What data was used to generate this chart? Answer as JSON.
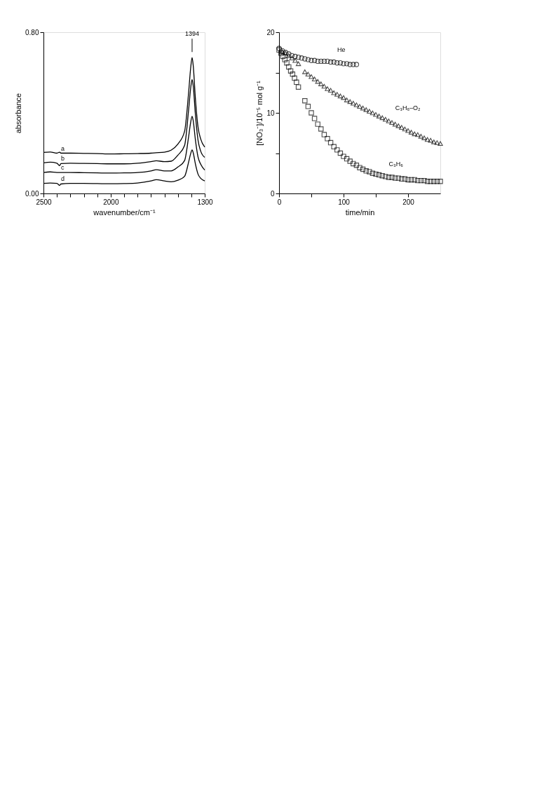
{
  "chart_data": [
    {
      "type": "line",
      "xlabel": "wavenumber/cm⁻¹",
      "ylabel": "absorbance",
      "xlim": [
        2500,
        1300
      ],
      "ylim": [
        0,
        0.8
      ],
      "xticks": [
        2500,
        {
          "value": 2400,
          "label": null
        },
        {
          "value": 2300,
          "label": null
        },
        {
          "value": 2200,
          "label": null
        },
        {
          "value": 2100,
          "label": null
        },
        2000,
        {
          "value": 1900,
          "label": null
        },
        {
          "value": 1800,
          "label": null
        },
        {
          "value": 1700,
          "label": null
        },
        {
          "value": 1600,
          "label": null
        },
        {
          "value": 1500,
          "label": null
        },
        {
          "value": 1400,
          "label": null
        },
        1300
      ],
      "yticks": [
        {
          "value": 0,
          "label": "0.00"
        },
        {
          "value": 0.8,
          "label": "0.80"
        }
      ],
      "marker": "none",
      "line_style": "solid",
      "grid": false,
      "x": [
        2500,
        2450,
        2400,
        2380,
        2370,
        2300,
        2200,
        2100,
        2000,
        1900,
        1800,
        1700,
        1660,
        1600,
        1550,
        1500,
        1450,
        1420,
        1405,
        1394,
        1385,
        1370,
        1350,
        1330,
        1300
      ],
      "series": [
        {
          "name": "a",
          "color": "#000000",
          "values": [
            0.204,
            0.206,
            0.2,
            0.205,
            0.2,
            0.2,
            0.199,
            0.198,
            0.196,
            0.197,
            0.198,
            0.2,
            0.202,
            0.205,
            0.215,
            0.245,
            0.308,
            0.5,
            0.62,
            0.674,
            0.63,
            0.476,
            0.33,
            0.27,
            0.23
          ]
        },
        {
          "name": "b",
          "color": "#000000",
          "values": [
            0.152,
            0.155,
            0.15,
            0.138,
            0.148,
            0.15,
            0.149,
            0.148,
            0.147,
            0.147,
            0.15,
            0.158,
            0.162,
            0.158,
            0.16,
            0.19,
            0.238,
            0.414,
            0.52,
            0.566,
            0.53,
            0.396,
            0.265,
            0.21,
            0.179
          ]
        },
        {
          "name": "c",
          "color": "#000000",
          "values": [
            0.104,
            0.107,
            0.104,
            0.104,
            0.104,
            0.104,
            0.103,
            0.102,
            0.101,
            0.102,
            0.104,
            0.112,
            0.118,
            0.112,
            0.112,
            0.131,
            0.163,
            0.281,
            0.352,
            0.383,
            0.358,
            0.269,
            0.181,
            0.145,
            0.116
          ]
        },
        {
          "name": "d",
          "color": "#000000",
          "values": [
            0.05,
            0.052,
            0.05,
            0.04,
            0.047,
            0.05,
            0.05,
            0.049,
            0.048,
            0.049,
            0.052,
            0.062,
            0.068,
            0.062,
            0.058,
            0.066,
            0.085,
            0.155,
            0.197,
            0.216,
            0.2,
            0.148,
            0.096,
            0.075,
            0.062
          ]
        }
      ],
      "annotations": [
        {
          "text": "1394",
          "x": 1394,
          "y": 0.674
        }
      ]
    },
    {
      "type": "scatter",
      "xlabel": "time/min",
      "ylabel": "[NO₃⁻]/10⁻⁵ mol g⁻¹",
      "xlim": [
        0,
        250
      ],
      "ylim": [
        0,
        20
      ],
      "xticks": [
        0,
        {
          "value": 50,
          "label": null
        },
        100,
        {
          "value": 150,
          "label": null
        },
        200
      ],
      "yticks": [
        0,
        {
          "value": 5,
          "label": null
        },
        10,
        {
          "value": 15,
          "label": null
        },
        20
      ],
      "grid": false,
      "series": [
        {
          "name": "He",
          "color": "#000000",
          "marker": "circle",
          "x": [
            0,
            5,
            10,
            15,
            20,
            25,
            30,
            35,
            40,
            45,
            50,
            55,
            60,
            65,
            70,
            75,
            80,
            85,
            90,
            95,
            100,
            105,
            110,
            115,
            120
          ],
          "values": [
            18.0,
            17.7,
            17.5,
            17.3,
            17.1,
            17.0,
            16.9,
            16.8,
            16.7,
            16.6,
            16.5,
            16.5,
            16.4,
            16.4,
            16.4,
            16.4,
            16.3,
            16.3,
            16.2,
            16.2,
            16.1,
            16.1,
            16.0,
            16.0,
            16.0
          ]
        },
        {
          "name": "C₃H₆–O₂",
          "color": "#000000",
          "marker": "triangle",
          "x": [
            5,
            10,
            15,
            20,
            25,
            30,
            40,
            45,
            50,
            55,
            60,
            65,
            70,
            75,
            80,
            85,
            90,
            95,
            100,
            105,
            110,
            115,
            120,
            125,
            130,
            135,
            140,
            145,
            150,
            155,
            160,
            165,
            170,
            175,
            180,
            185,
            190,
            195,
            200,
            205,
            210,
            215,
            220,
            225,
            230,
            235,
            240,
            245,
            250
          ],
          "values": [
            17.6,
            17.4,
            17.1,
            16.8,
            16.5,
            16.1,
            15.1,
            14.8,
            14.5,
            14.2,
            13.9,
            13.6,
            13.3,
            13.0,
            12.8,
            12.5,
            12.3,
            12.1,
            11.9,
            11.6,
            11.4,
            11.2,
            11.0,
            10.8,
            10.6,
            10.4,
            10.2,
            10.0,
            9.8,
            9.6,
            9.4,
            9.2,
            9.0,
            8.8,
            8.6,
            8.4,
            8.2,
            8.0,
            7.8,
            7.6,
            7.4,
            7.3,
            7.1,
            6.9,
            6.7,
            6.6,
            6.4,
            6.3,
            6.2
          ]
        },
        {
          "name": "C₃H₆",
          "color": "#000000",
          "marker": "square",
          "x": [
            0,
            3,
            6,
            9,
            12,
            15,
            18,
            21,
            24,
            27,
            30,
            40,
            45,
            50,
            55,
            60,
            65,
            70,
            75,
            80,
            85,
            90,
            95,
            100,
            105,
            110,
            115,
            120,
            125,
            130,
            135,
            140,
            145,
            150,
            155,
            160,
            165,
            170,
            175,
            180,
            185,
            190,
            195,
            200,
            205,
            210,
            215,
            220,
            225,
            230,
            235,
            240,
            245,
            250
          ],
          "values": [
            17.8,
            17.4,
            17.0,
            16.6,
            16.2,
            15.7,
            15.2,
            14.8,
            14.3,
            13.8,
            13.2,
            11.5,
            10.8,
            10.0,
            9.3,
            8.6,
            8.0,
            7.3,
            6.8,
            6.3,
            5.8,
            5.4,
            5.0,
            4.6,
            4.3,
            4.0,
            3.7,
            3.5,
            3.2,
            3.0,
            2.8,
            2.7,
            2.5,
            2.4,
            2.3,
            2.2,
            2.1,
            2.0,
            2.0,
            1.9,
            1.9,
            1.8,
            1.8,
            1.7,
            1.7,
            1.7,
            1.6,
            1.6,
            1.6,
            1.5,
            1.5,
            1.5,
            1.5,
            1.5
          ]
        }
      ]
    }
  ]
}
